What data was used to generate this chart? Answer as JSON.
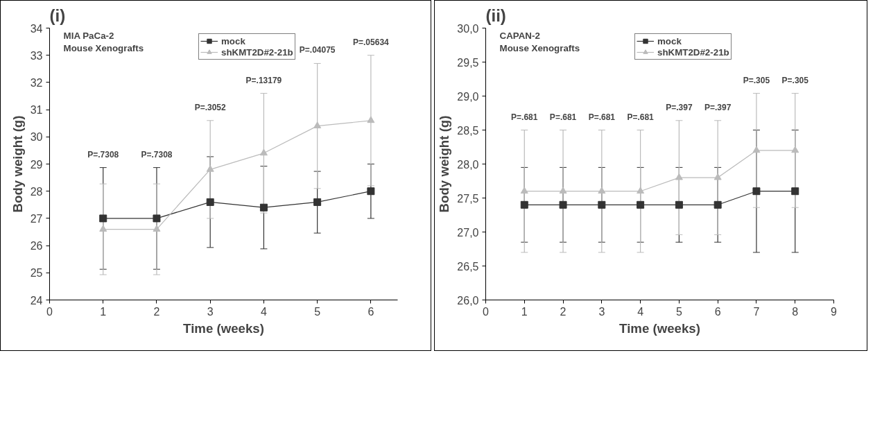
{
  "chart_data": [
    {
      "type": "line",
      "title": "MIA PaCa-2\nMouse Xenografts",
      "xlabel": "Time (weeks)",
      "ylabel": "Body weight (g)",
      "annotations": [
        "(i)",
        "P=.7308",
        "P=.7308",
        "P=.3052",
        "P=.13179",
        "P=.04075",
        "P=.05634"
      ],
      "x": [
        1,
        2,
        3,
        4,
        5,
        6
      ],
      "series": [
        {
          "name": "mock",
          "color": "#333333",
          "marker": "square",
          "values": [
            27,
            27,
            27.6,
            27.4,
            27.6,
            28
          ],
          "errors": [
            [
              25.13,
              28.87
            ],
            [
              25.13,
              28.87
            ],
            [
              25.93,
              29.27
            ],
            [
              25.88,
              28.92
            ],
            [
              26.46,
              28.73
            ],
            [
              27.0,
              29.0
            ]
          ]
        },
        {
          "name": "shKMT2D#2-21b",
          "color": "#bbbbbb",
          "marker": "triangle",
          "values": [
            26.6,
            26.6,
            28.8,
            29.4,
            30.4,
            30.6
          ],
          "errors": [
            [
              24.93,
              28.27
            ],
            [
              24.93,
              28.27
            ],
            [
              27.0,
              30.6
            ],
            [
              27.2,
              31.6
            ],
            [
              28.1,
              32.7
            ],
            [
              28.2,
              33.0
            ]
          ]
        }
      ],
      "xlim": [
        0,
        6.5
      ],
      "xticks": [
        0,
        1,
        2,
        3,
        4,
        5,
        6
      ],
      "ylim": [
        24,
        34
      ],
      "yticks": [
        24,
        25,
        26,
        27,
        28,
        29,
        30,
        31,
        32,
        33,
        34
      ],
      "grid": false,
      "legend": "top right"
    },
    {
      "type": "line",
      "title": "CAPAN-2\nMouse Xenografts",
      "xlabel": "Time (weeks)",
      "ylabel": "Body weight (g)",
      "annotations": [
        "(ii)",
        "P=.681",
        "P=.681",
        "P=.681",
        "P=.681",
        "P=.397",
        "P=.397",
        "P=.305",
        "P=.305"
      ],
      "x": [
        1,
        2,
        3,
        4,
        5,
        6,
        7,
        8
      ],
      "series": [
        {
          "name": "mock",
          "color": "#333333",
          "marker": "square",
          "values": [
            27.4,
            27.4,
            27.4,
            27.4,
            27.4,
            27.4,
            27.6,
            27.6
          ],
          "errors": [
            [
              26.85,
              27.95
            ],
            [
              26.85,
              27.95
            ],
            [
              26.85,
              27.95
            ],
            [
              26.85,
              27.95
            ],
            [
              26.85,
              27.95
            ],
            [
              26.85,
              27.95
            ],
            [
              26.7,
              28.5
            ],
            [
              26.7,
              28.5
            ]
          ]
        },
        {
          "name": "shKMT2D#2-21b",
          "color": "#bbbbbb",
          "marker": "triangle",
          "values": [
            27.6,
            27.6,
            27.6,
            27.6,
            27.8,
            27.8,
            28.2,
            28.2
          ],
          "errors": [
            [
              26.7,
              28.5
            ],
            [
              26.7,
              28.5
            ],
            [
              26.7,
              28.5
            ],
            [
              26.7,
              28.5
            ],
            [
              26.96,
              28.64
            ],
            [
              26.96,
              28.64
            ],
            [
              27.36,
              29.04
            ],
            [
              27.36,
              29.04
            ]
          ]
        }
      ],
      "xlim": [
        0,
        9
      ],
      "xticks": [
        0,
        1,
        2,
        3,
        4,
        5,
        6,
        7,
        8,
        9
      ],
      "ylim": [
        26,
        30
      ],
      "yticks": [
        {
          "value": 26,
          "label": "26,0"
        },
        {
          "value": 26.5,
          "label": "26,5"
        },
        {
          "value": 27,
          "label": "27,0"
        },
        {
          "value": 27.5,
          "label": "27,5"
        },
        {
          "value": 28,
          "label": "28,0"
        },
        {
          "value": 28.5,
          "label": "28,5"
        },
        {
          "value": 29,
          "label": "29,0"
        },
        {
          "value": 29.5,
          "label": "29,5"
        },
        {
          "value": 30,
          "label": "30,0"
        }
      ],
      "grid": false,
      "legend": "top right"
    }
  ]
}
